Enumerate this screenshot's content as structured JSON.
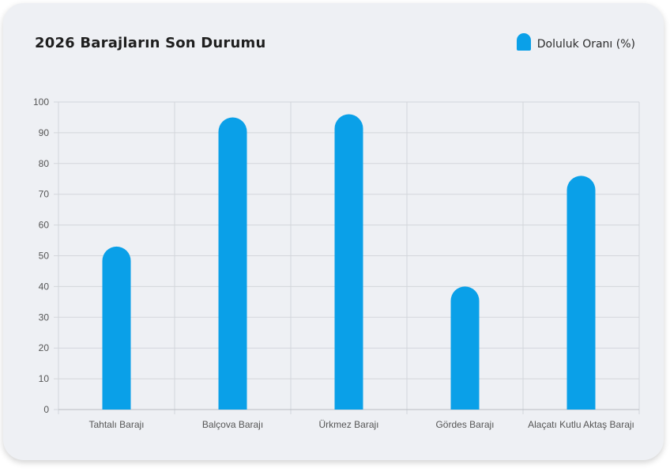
{
  "title": "2026 Barajların Son Durumu",
  "legend": {
    "label": "Doluluk Oranı (%)",
    "color": "#0aa0e8"
  },
  "chart_data": {
    "type": "bar",
    "categories": [
      "Tahtalı Barajı",
      "Balçova Barajı",
      "Ürkmez Barajı",
      "Gördes Barajı",
      "Alaçatı Kutlu Aktaş Barajı"
    ],
    "series": [
      {
        "name": "Doluluk Oranı (%)",
        "values": [
          53,
          95,
          96,
          40,
          76
        ]
      }
    ],
    "ylim": [
      0,
      100
    ],
    "yticks": [
      0,
      10,
      20,
      30,
      40,
      50,
      60,
      70,
      80,
      90,
      100
    ],
    "grid": true,
    "legend_position": "top-right",
    "bar_color": "#0aa0e8"
  }
}
